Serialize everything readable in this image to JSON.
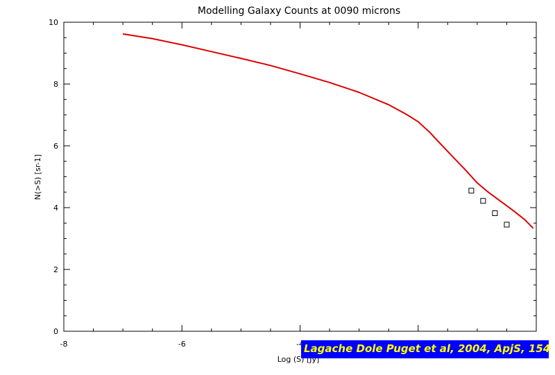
{
  "chart_data": {
    "type": "line",
    "title": "Modelling Galaxy Counts at 0090 microns",
    "xlabel": "Log (S) [Jy]",
    "ylabel": "N(>S) [sr-1]",
    "xlim": [
      -8,
      0
    ],
    "ylim": [
      0,
      10
    ],
    "xticks": [
      -8,
      -6,
      -4
    ],
    "yticks": [
      0,
      2,
      4,
      6,
      8,
      10
    ],
    "grid": false,
    "series": [
      {
        "kind": "line",
        "color": "#dd0000",
        "x": [
          -7.0,
          -6.5,
          -6.0,
          -5.5,
          -5.0,
          -4.5,
          -4.0,
          -3.5,
          -3.0,
          -2.5,
          -2.2,
          -2.0,
          -1.8,
          -1.6,
          -1.4,
          -1.2,
          -1.0,
          -0.8,
          -0.6,
          -0.4,
          -0.2,
          -0.05
        ],
        "y": [
          9.62,
          9.47,
          9.27,
          9.05,
          8.83,
          8.6,
          8.33,
          8.05,
          7.73,
          7.33,
          7.02,
          6.78,
          6.43,
          6.02,
          5.62,
          5.22,
          4.8,
          4.48,
          4.2,
          3.92,
          3.62,
          3.33
        ]
      },
      {
        "kind": "markers",
        "marker": "square",
        "color": "#000000",
        "x": [
          -1.1,
          -0.9,
          -0.7,
          -0.5
        ],
        "y": [
          4.55,
          4.22,
          3.82,
          3.45
        ]
      }
    ]
  },
  "annotation": {
    "citation": "Lagache Dole Puget et al, 2004, ApjS, 154",
    "background": "#0000ff",
    "color": "#ffff00"
  }
}
